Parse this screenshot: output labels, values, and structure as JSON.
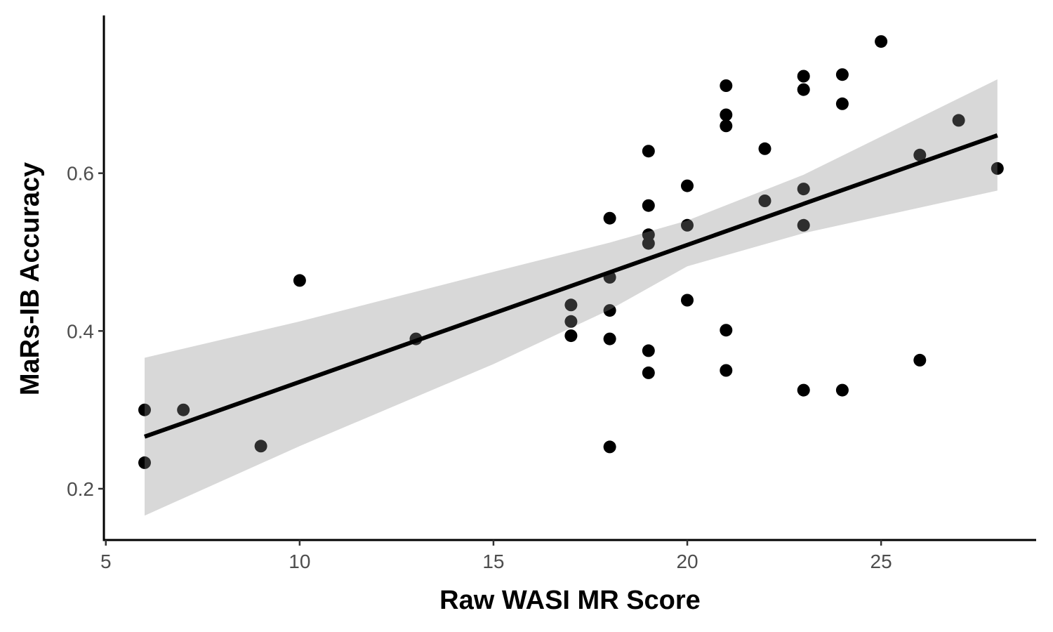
{
  "chart_data": {
    "type": "scatter",
    "title": "",
    "xlabel": "Raw WASI MR Score",
    "ylabel": "MaRs-IB Accuracy",
    "xlim": [
      4.95,
      29.0
    ],
    "ylim": [
      0.135,
      0.8
    ],
    "x_ticks": [
      5,
      10,
      15,
      20,
      25
    ],
    "y_ticks": [
      0.2,
      0.4,
      0.6
    ],
    "x_tick_labels": [
      "5",
      "10",
      "15",
      "20",
      "25"
    ],
    "y_tick_labels": [
      "0.2",
      "0.4",
      "0.6"
    ],
    "grid": false,
    "legend": "none",
    "points": [
      {
        "x": 6,
        "y": 0.3
      },
      {
        "x": 6,
        "y": 0.233
      },
      {
        "x": 7,
        "y": 0.3
      },
      {
        "x": 9,
        "y": 0.254
      },
      {
        "x": 10,
        "y": 0.464
      },
      {
        "x": 13,
        "y": 0.39
      },
      {
        "x": 17,
        "y": 0.433
      },
      {
        "x": 17,
        "y": 0.412
      },
      {
        "x": 17,
        "y": 0.394
      },
      {
        "x": 18,
        "y": 0.543
      },
      {
        "x": 18,
        "y": 0.468
      },
      {
        "x": 18,
        "y": 0.426
      },
      {
        "x": 18,
        "y": 0.39
      },
      {
        "x": 18,
        "y": 0.253
      },
      {
        "x": 19,
        "y": 0.628
      },
      {
        "x": 19,
        "y": 0.559
      },
      {
        "x": 19,
        "y": 0.522
      },
      {
        "x": 19,
        "y": 0.511
      },
      {
        "x": 19,
        "y": 0.375
      },
      {
        "x": 19,
        "y": 0.347
      },
      {
        "x": 20,
        "y": 0.584
      },
      {
        "x": 20,
        "y": 0.534
      },
      {
        "x": 20,
        "y": 0.439
      },
      {
        "x": 21,
        "y": 0.711
      },
      {
        "x": 21,
        "y": 0.674
      },
      {
        "x": 21,
        "y": 0.66
      },
      {
        "x": 21,
        "y": 0.401
      },
      {
        "x": 21,
        "y": 0.35
      },
      {
        "x": 22,
        "y": 0.631
      },
      {
        "x": 22,
        "y": 0.565
      },
      {
        "x": 23,
        "y": 0.723
      },
      {
        "x": 23,
        "y": 0.706
      },
      {
        "x": 23,
        "y": 0.58
      },
      {
        "x": 23,
        "y": 0.534
      },
      {
        "x": 23,
        "y": 0.325
      },
      {
        "x": 24,
        "y": 0.725
      },
      {
        "x": 24,
        "y": 0.688
      },
      {
        "x": 24,
        "y": 0.325
      },
      {
        "x": 25,
        "y": 0.767
      },
      {
        "x": 26,
        "y": 0.623
      },
      {
        "x": 26,
        "y": 0.363
      },
      {
        "x": 27,
        "y": 0.667
      },
      {
        "x": 28,
        "y": 0.606
      }
    ],
    "fit_line": {
      "x": [
        6,
        28
      ],
      "y": [
        0.266,
        0.648
      ]
    },
    "confidence_band": {
      "x": [
        6,
        10,
        15,
        18,
        20,
        23,
        28
      ],
      "upper": [
        0.366,
        0.412,
        0.475,
        0.512,
        0.54,
        0.598,
        0.719
      ],
      "lower": [
        0.166,
        0.254,
        0.358,
        0.427,
        0.482,
        0.524,
        0.578
      ]
    },
    "colors": {
      "points": "#000000",
      "line": "#000000",
      "band": "#d0d0d0",
      "axis": "#000000"
    }
  }
}
